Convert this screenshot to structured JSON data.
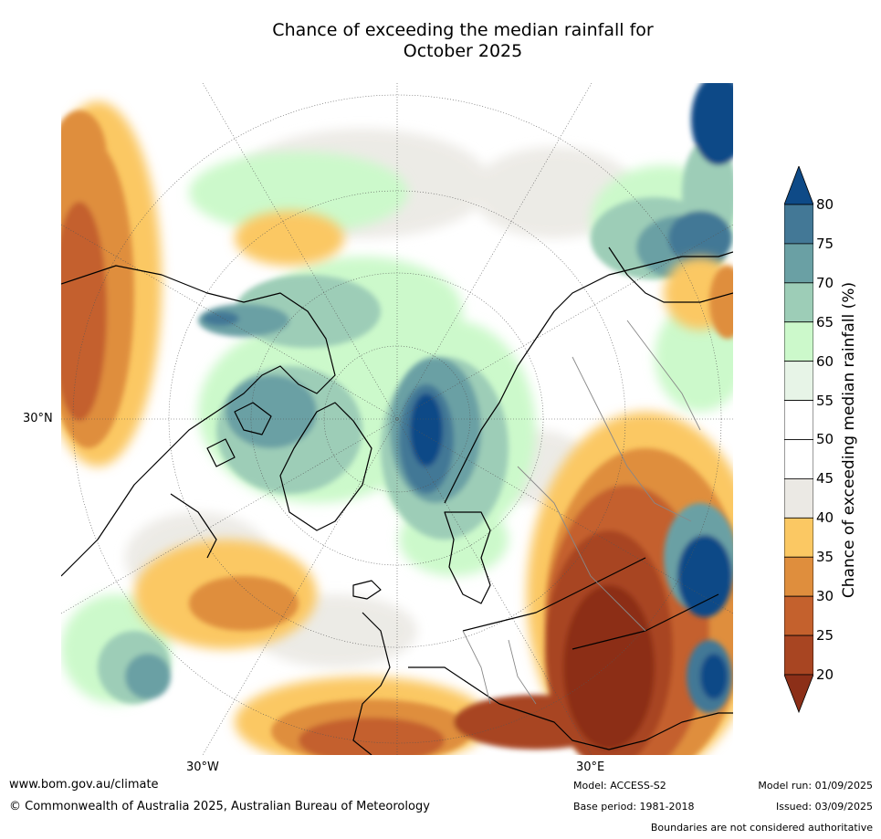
{
  "title": {
    "line1": "Chance of exceeding the median rainfall for",
    "line2": "October 2025"
  },
  "map": {
    "projection": "north-polar-stereographic",
    "lat_label": "30°N",
    "lon_labels": [
      "30°W",
      "30°E"
    ]
  },
  "colorbar": {
    "label": "Chance of exceeding median rainfall (%)",
    "ticks": [
      "80",
      "75",
      "70",
      "65",
      "60",
      "55",
      "50",
      "45",
      "40",
      "35",
      "30",
      "25",
      "20"
    ],
    "colors": [
      "#0e4a87",
      "#437896",
      "#6aa0a4",
      "#9dcdb7",
      "#ccf9cb",
      "#e7f4e7",
      "#ffffff",
      "#ffffff",
      "#ebe9e4",
      "#fbc863",
      "#df8e3d",
      "#c4612d",
      "#a84522",
      "#8c2f18"
    ]
  },
  "footer": {
    "url": "www.bom.gov.au/climate",
    "copyright": "© Commonwealth of Australia 2025, Australian Bureau of Meteorology",
    "model": "Model: ACCESS-S2",
    "base_period": "Base period: 1981-2018",
    "model_run": "Model run: 01/09/2025",
    "issued": "Issued: 03/09/2025",
    "disclaimer": "Boundaries are not considered authoritative"
  }
}
